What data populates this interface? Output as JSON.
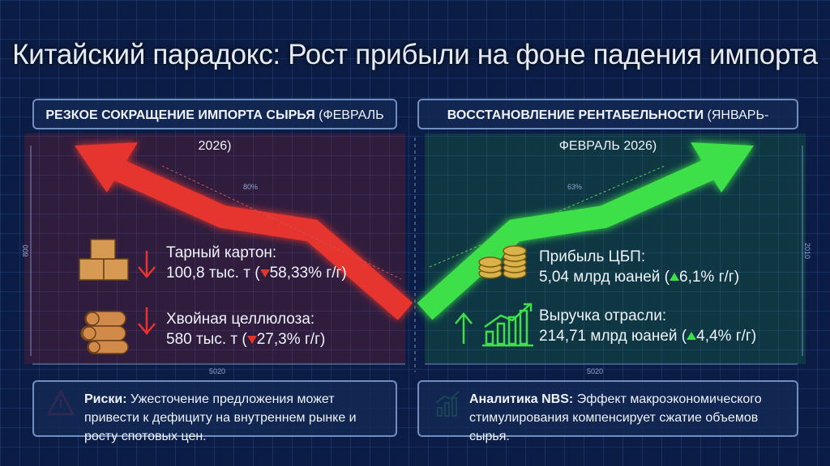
{
  "title": "Китайский парадокс: Рост прибыли на фоне падения импорта",
  "left": {
    "header": {
      "bold": "РЕЗКОЕ СОКРАЩЕНИЕ ИМПОРТА СЫРЬЯ",
      "period": "(ФЕВРАЛЬ 2026)"
    },
    "arrow_label": "80%",
    "items": [
      {
        "label": "Тарный картон:",
        "value": "100,8 тыс. т (",
        "change": "58,33% г/г)"
      },
      {
        "label": "Хвойная целлюлоза:",
        "value": "580 тыс. т (",
        "change": "27,3% г/г)"
      }
    ],
    "dimension_bottom": "5020",
    "dimension_side": "800",
    "note": {
      "bold": "Риски:",
      "text": "Ужесточение предложения может привести к дефициту на внутреннем рынке и росту спотовых цен."
    }
  },
  "right": {
    "header": {
      "bold": "ВОССТАНОВЛЕНИЕ РЕНТАБЕЛЬНОСТИ",
      "period": "(ЯНВАРЬ-ФЕВРАЛЬ 2026)"
    },
    "arrow_label": "63%",
    "items": [
      {
        "label": "Прибыль ЦБП:",
        "value": "5,04 млрд юаней (",
        "change": "6,1% г/г)"
      },
      {
        "label": "Выручка отрасли:",
        "value": "214,71 млрд юаней (",
        "change": "4,4% г/г)"
      }
    ],
    "dimension_bottom": "5020",
    "dimension_side": "2010",
    "note": {
      "bold": "Аналитика NBS:",
      "text": "Эффект макроэкономического стимулирования компенсирует сжатие объемов сырья."
    }
  }
}
